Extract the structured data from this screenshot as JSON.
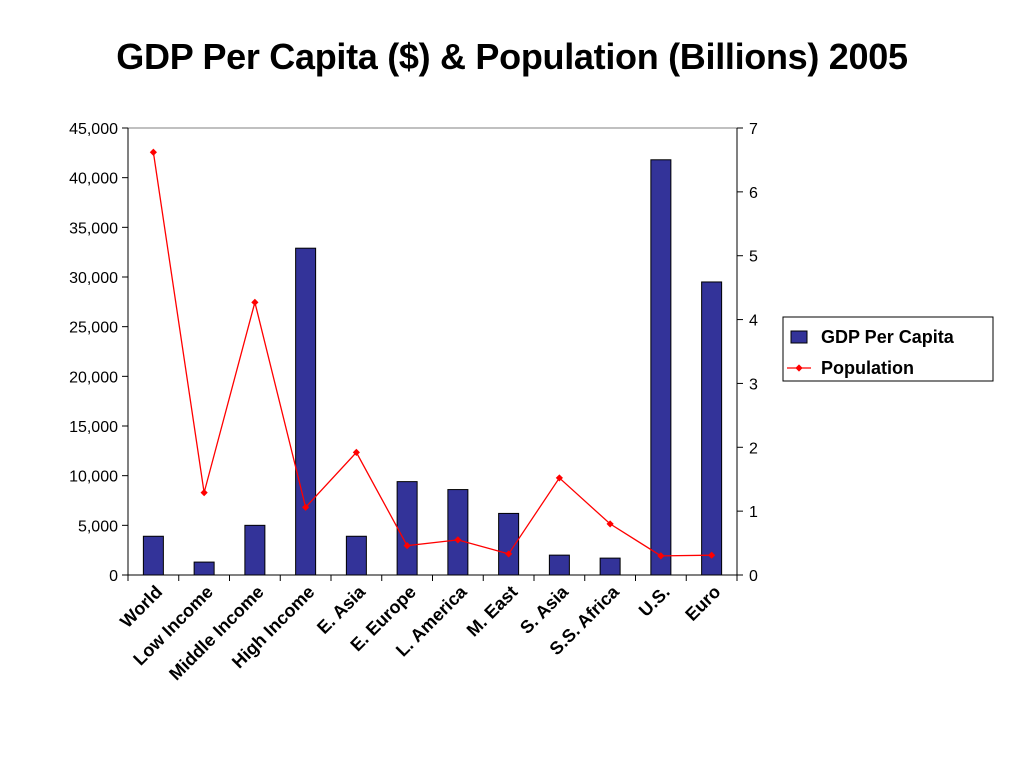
{
  "chart_data": {
    "type": "bar",
    "title": "GDP Per Capita ($) & Population (Billions) 2005",
    "categories": [
      "World",
      "Low Income",
      "Middle Income",
      "High Income",
      "E. Asia",
      "E. Europe",
      "L. America",
      "M. East",
      "S. Asia",
      "S.S. Africa",
      "U.S.",
      "Euro"
    ],
    "series": [
      {
        "name": "GDP Per Capita",
        "type": "bar",
        "axis": "left",
        "color": "#333399",
        "values": [
          3900,
          1300,
          5000,
          32900,
          3900,
          9400,
          8600,
          6200,
          2000,
          1700,
          41800,
          29500
        ]
      },
      {
        "name": "Population",
        "type": "line",
        "axis": "right",
        "color": "#ff0000",
        "values": [
          6.62,
          1.29,
          4.27,
          1.06,
          1.92,
          0.46,
          0.55,
          0.33,
          1.52,
          0.8,
          0.3,
          0.31
        ]
      }
    ],
    "ylim_left": [
      0,
      45000
    ],
    "yticks_left": [
      "0",
      "5,000",
      "10,000",
      "15,000",
      "20,000",
      "25,000",
      "30,000",
      "35,000",
      "40,000",
      "45,000"
    ],
    "ylim_right": [
      0,
      7
    ],
    "yticks_right": [
      "0",
      "1",
      "2",
      "3",
      "4",
      "5",
      "6",
      "7"
    ],
    "grid": false,
    "legend_position": "right"
  }
}
